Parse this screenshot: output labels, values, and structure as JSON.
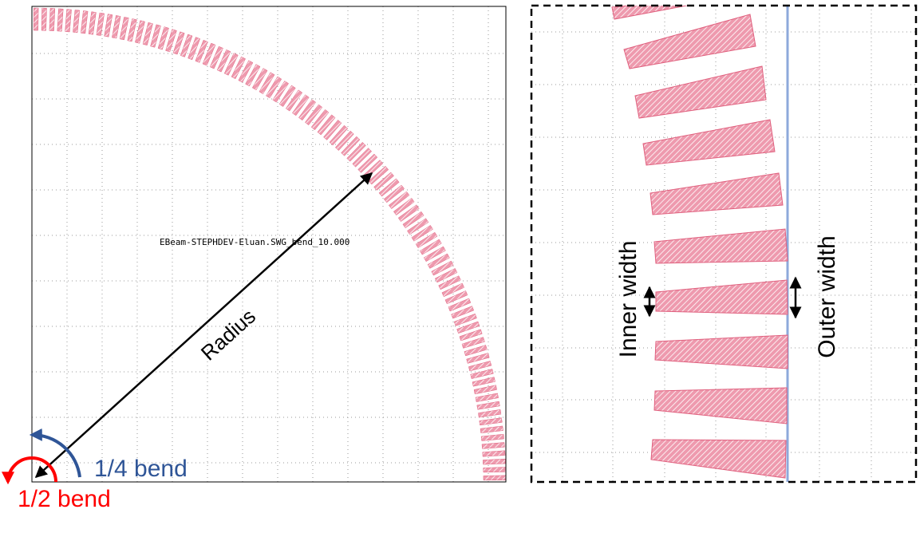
{
  "left_panel": {
    "cell_name": "EBeam-STEPHDEV-Eluan.SWG_bend_10.000",
    "radius_label": "Radius",
    "quarter_bend_label": "1/4 bend",
    "half_bend_label": "1/2 bend"
  },
  "right_panel": {
    "inner_width_label": "Inner width",
    "outer_width_label": "Outer width"
  },
  "colors": {
    "segment_fill": "#ee9aae",
    "segment_stroke": "#e0607e",
    "grid": "#9a9a9a",
    "quarter_bend": "#2f5597",
    "half_bend": "#ff0000",
    "outer_edge": "#8ea9db",
    "arrow": "#000000"
  }
}
